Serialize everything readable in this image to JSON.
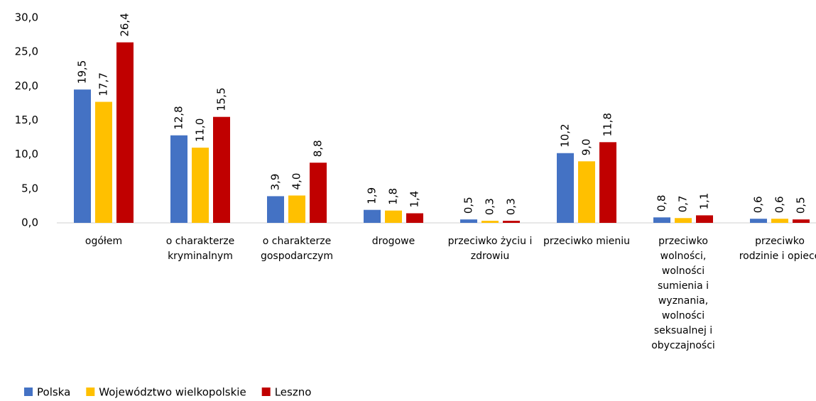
{
  "chart_data": {
    "type": "bar",
    "categories": [
      "ogółem",
      "o charakterze kryminalnym",
      "o charakterze gospodarczym",
      "drogowe",
      "przeciwko życiu i zdrowiu",
      "przeciwko mieniu",
      "przeciwko wolności, wolności sumienia i wyznania, wolności seksualnej i obyczajności",
      "przeciwko rodzinie i opiece"
    ],
    "series": [
      {
        "name": "Polska",
        "color": "#4472c4",
        "values": [
          19.5,
          12.8,
          3.9,
          1.9,
          0.5,
          10.2,
          0.8,
          0.6
        ],
        "value_labels": [
          "19,5",
          "12,8",
          "3,9",
          "1,9",
          "0,5",
          "10,2",
          "0,8",
          "0,6"
        ]
      },
      {
        "name": "Województwo wielkopolskie",
        "color": "#ffc000",
        "values": [
          17.7,
          11.0,
          4.0,
          1.8,
          0.3,
          9.0,
          0.7,
          0.6
        ],
        "value_labels": [
          "17,7",
          "11,0",
          "4,0",
          "1,8",
          "0,3",
          "9,0",
          "0,7",
          "0,6"
        ]
      },
      {
        "name": "Leszno",
        "color": "#c00000",
        "values": [
          26.4,
          15.5,
          8.8,
          1.4,
          0.3,
          11.8,
          1.1,
          0.5
        ],
        "value_labels": [
          "26,4",
          "15,5",
          "8,8",
          "1,4",
          "0,3",
          "11,8",
          "1,1",
          "0,5"
        ]
      }
    ],
    "ylim": [
      0,
      30
    ],
    "yticks": [
      {
        "value": 0,
        "label": "0,0"
      },
      {
        "value": 5,
        "label": "5,0"
      },
      {
        "value": 10,
        "label": "10,0"
      },
      {
        "value": 15,
        "label": "15,0"
      },
      {
        "value": 20,
        "label": "20,0"
      },
      {
        "value": 25,
        "label": "25,0"
      },
      {
        "value": 30,
        "label": "30,0"
      }
    ],
    "legend": "bottom-left"
  }
}
